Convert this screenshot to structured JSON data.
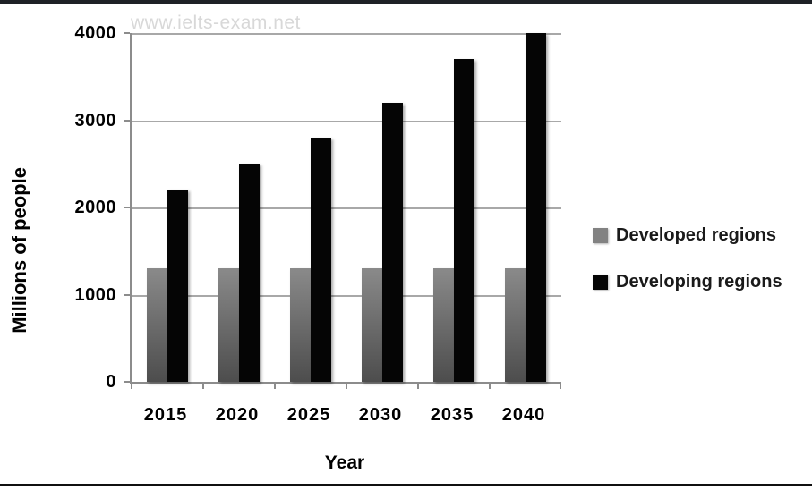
{
  "watermark": "www.ielts-exam.net",
  "chart_data": {
    "type": "bar",
    "categories": [
      "2015",
      "2020",
      "2025",
      "2030",
      "2035",
      "2040"
    ],
    "series": [
      {
        "name": "Developed regions",
        "values": [
          1300,
          1300,
          1300,
          1300,
          1300,
          1300
        ],
        "swatch": "#828282",
        "color_top": "#8a8a8a",
        "color_bottom": "#4d4d4d"
      },
      {
        "name": "Developing regions",
        "values": [
          2200,
          2500,
          2800,
          3200,
          3700,
          4000
        ],
        "swatch": "#050505",
        "color": "#050505"
      }
    ],
    "xlabel": "Year",
    "ylabel": "Millions of people",
    "ylim": [
      0,
      4000
    ],
    "yticks": [
      0,
      1000,
      2000,
      3000,
      4000
    ],
    "grid": true,
    "legend_position": "right"
  }
}
